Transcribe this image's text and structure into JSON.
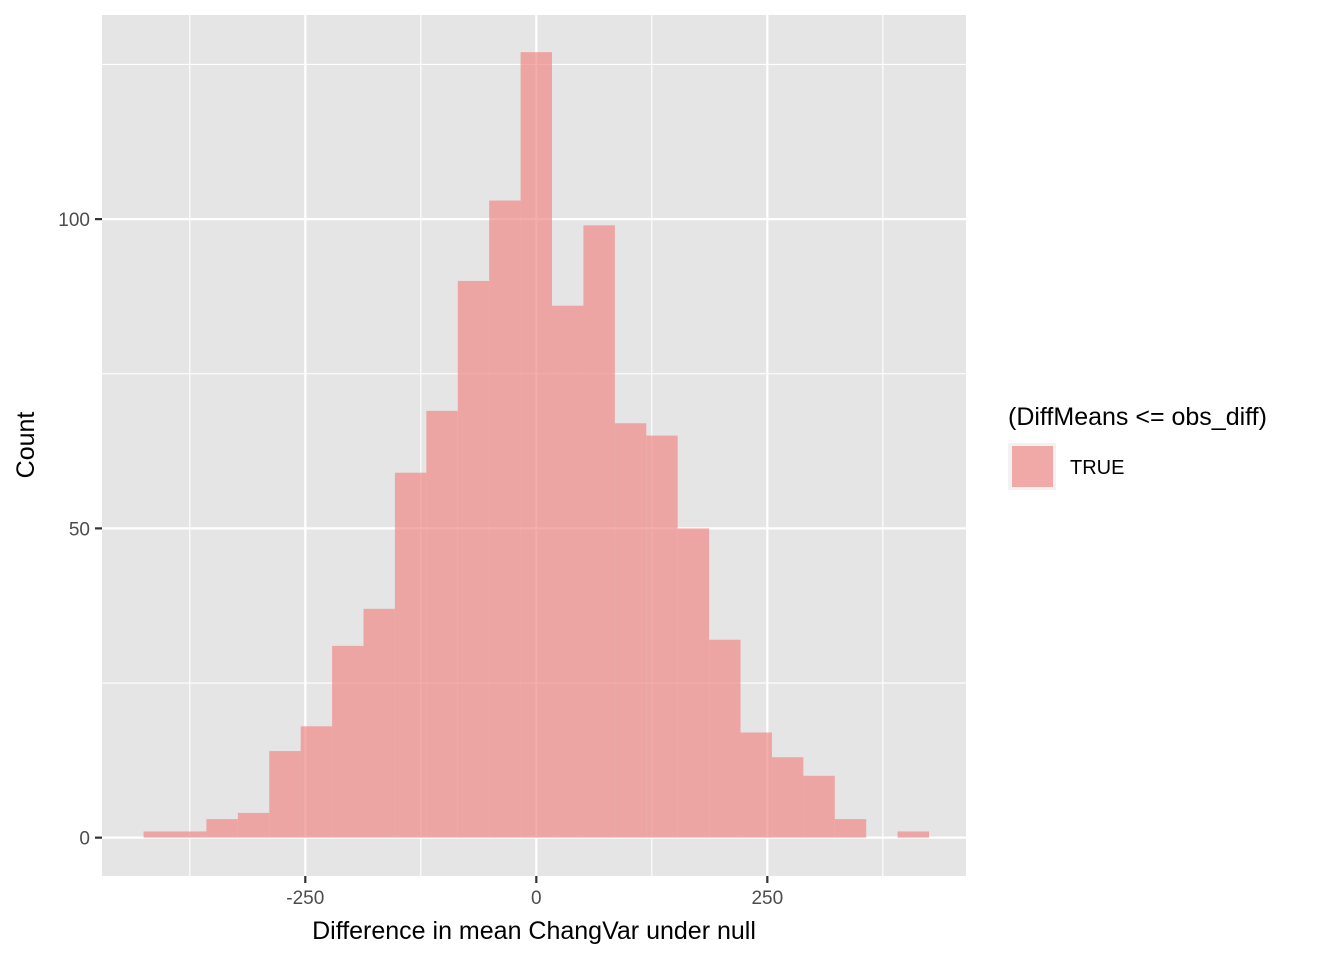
{
  "chart_data": {
    "type": "bar",
    "xlabel": "Difference in mean ChangVar under null",
    "ylabel": "Count",
    "x_ticks": [
      -250,
      0,
      250
    ],
    "x_tick_labels": [
      "-250",
      "0",
      "250"
    ],
    "y_ticks": [
      0,
      50,
      100
    ],
    "y_tick_labels": [
      "0",
      "50",
      "100"
    ],
    "xlim": [
      -470,
      465
    ],
    "ylim": [
      -6.2,
      133
    ],
    "grid": true,
    "bin_width": 34,
    "bins": [
      {
        "x0": -425,
        "x1": -391,
        "count": 1
      },
      {
        "x0": -391,
        "x1": -357,
        "count": 1
      },
      {
        "x0": -357,
        "x1": -323,
        "count": 3
      },
      {
        "x0": -323,
        "x1": -289,
        "count": 4
      },
      {
        "x0": -289,
        "x1": -255,
        "count": 14
      },
      {
        "x0": -255,
        "x1": -221,
        "count": 18
      },
      {
        "x0": -221,
        "x1": -187,
        "count": 31
      },
      {
        "x0": -187,
        "x1": -153,
        "count": 37
      },
      {
        "x0": -153,
        "x1": -119,
        "count": 59
      },
      {
        "x0": -119,
        "x1": -85,
        "count": 69
      },
      {
        "x0": -85,
        "x1": -51,
        "count": 90
      },
      {
        "x0": -51,
        "x1": -17,
        "count": 103
      },
      {
        "x0": -17,
        "x1": 17,
        "count": 127
      },
      {
        "x0": 17,
        "x1": 51,
        "count": 86
      },
      {
        "x0": 51,
        "x1": 85,
        "count": 99
      },
      {
        "x0": 85,
        "x1": 119,
        "count": 67
      },
      {
        "x0": 119,
        "x1": 153,
        "count": 65
      },
      {
        "x0": 153,
        "x1": 187,
        "count": 50
      },
      {
        "x0": 187,
        "x1": 221,
        "count": 32
      },
      {
        "x0": 221,
        "x1": 255,
        "count": 17
      },
      {
        "x0": 255,
        "x1": 289,
        "count": 13
      },
      {
        "x0": 289,
        "x1": 323,
        "count": 10
      },
      {
        "x0": 323,
        "x1": 357,
        "count": 3
      },
      {
        "x0": 357,
        "x1": 391,
        "count": 0
      },
      {
        "x0": 391,
        "x1": 425,
        "count": 1
      }
    ],
    "legend": {
      "title": "(DiffMeans <= obs_diff)",
      "placement": "right",
      "entries": [
        {
          "label": "TRUE",
          "color": "#f08a86"
        }
      ]
    },
    "colors": {
      "panel_background": "#e5e5e5",
      "gridline": "#ffffff",
      "bar_fill": "#f08a86",
      "bar_opacity": 0.7
    }
  }
}
